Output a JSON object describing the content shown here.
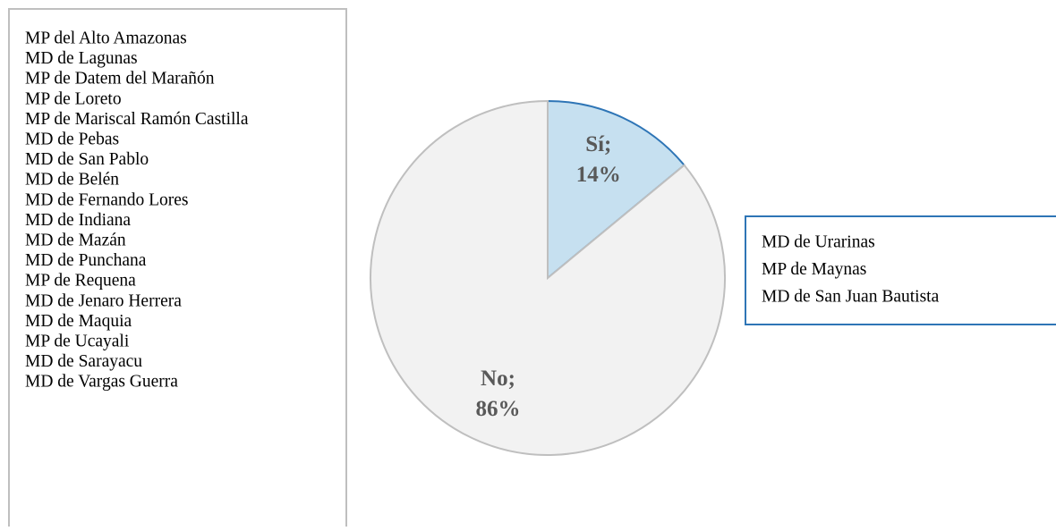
{
  "chart_data": {
    "type": "pie",
    "categories": [
      "Sí;",
      "No;"
    ],
    "values": [
      14,
      86
    ],
    "value_labels": [
      "14%",
      "86%"
    ],
    "colors": [
      "#c6e0f0",
      "#f2f2f2"
    ],
    "edgecolors": [
      "#2e75b6",
      "#bfbfbf"
    ],
    "lists": [
      {
        "slice": 1,
        "items": [
          "MP del Alto Amazonas",
          "MD de Lagunas",
          "MP de Datem del Marañón",
          "MP de Loreto",
          "MP de Mariscal Ramón Castilla",
          "MD de Pebas",
          "MD de San Pablo",
          "MD de Belén",
          "MD de Fernando Lores",
          "MD de Indiana",
          "MD de Mazán",
          "MD de Punchana",
          "MP de Requena",
          "MD de Jenaro Herrera",
          "MD de Maquia",
          "MP de Ucayali",
          "MD de Sarayacu",
          "MD de Vargas Guerra"
        ]
      },
      {
        "slice": 0,
        "items": [
          "MD de Urarinas",
          "MP de Maynas",
          "MD de San Juan Bautista"
        ]
      }
    ]
  }
}
